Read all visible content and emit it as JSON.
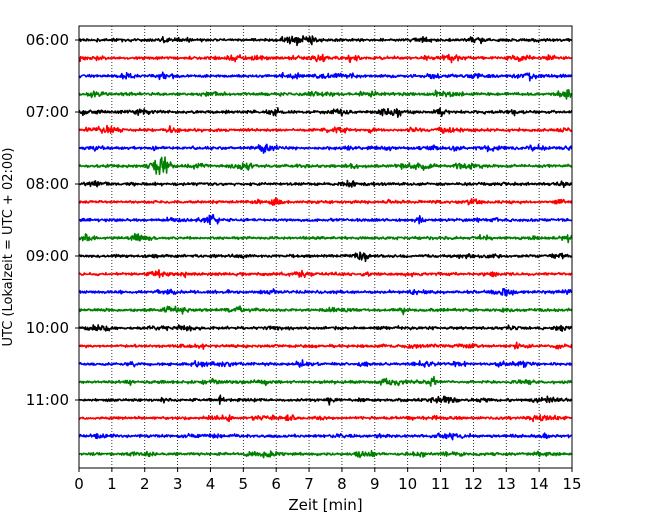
{
  "chart_data": {
    "type": "line",
    "title": "",
    "xlabel": "Zeit  [min]",
    "ylabel": "UTC (Lokalzeit = UTC + 02:00)",
    "xlim": [
      0,
      15
    ],
    "x_ticks": [
      0,
      1,
      2,
      3,
      4,
      5,
      6,
      7,
      8,
      9,
      10,
      11,
      12,
      13,
      14,
      15
    ],
    "x_tick_labels": [
      "0",
      "1",
      "2",
      "3",
      "4",
      "5",
      "6",
      "7",
      "8",
      "9",
      "10",
      "11",
      "12",
      "13",
      "14",
      "15"
    ],
    "y_tick_labels": [
      "06:00",
      "07:00",
      "08:00",
      "09:00",
      "10:00",
      "11:00"
    ],
    "trace_interval_minutes": 15,
    "grid": "vertical dotted at each minute",
    "colors_cycle": [
      "#000000",
      "#ff0000",
      "#0000ff",
      "#008000"
    ],
    "traces": [
      {
        "start": "06:00",
        "color": "#000000"
      },
      {
        "start": "06:15",
        "color": "#ff0000"
      },
      {
        "start": "06:30",
        "color": "#0000ff"
      },
      {
        "start": "06:45",
        "color": "#008000"
      },
      {
        "start": "07:00",
        "color": "#000000"
      },
      {
        "start": "07:15",
        "color": "#ff0000"
      },
      {
        "start": "07:30",
        "color": "#0000ff"
      },
      {
        "start": "07:45",
        "color": "#008000",
        "event": {
          "x_min": 2.5,
          "amplitude": "large"
        }
      },
      {
        "start": "08:00",
        "color": "#000000"
      },
      {
        "start": "08:15",
        "color": "#ff0000"
      },
      {
        "start": "08:30",
        "color": "#0000ff"
      },
      {
        "start": "08:45",
        "color": "#008000"
      },
      {
        "start": "09:00",
        "color": "#000000"
      },
      {
        "start": "09:15",
        "color": "#ff0000"
      },
      {
        "start": "09:30",
        "color": "#0000ff"
      },
      {
        "start": "09:45",
        "color": "#008000"
      },
      {
        "start": "10:00",
        "color": "#000000"
      },
      {
        "start": "10:15",
        "color": "#ff0000"
      },
      {
        "start": "10:30",
        "color": "#0000ff"
      },
      {
        "start": "10:45",
        "color": "#008000"
      },
      {
        "start": "11:00",
        "color": "#000000"
      },
      {
        "start": "11:15",
        "color": "#ff0000"
      },
      {
        "start": "11:30",
        "color": "#0000ff"
      },
      {
        "start": "11:45",
        "color": "#008000"
      }
    ]
  }
}
